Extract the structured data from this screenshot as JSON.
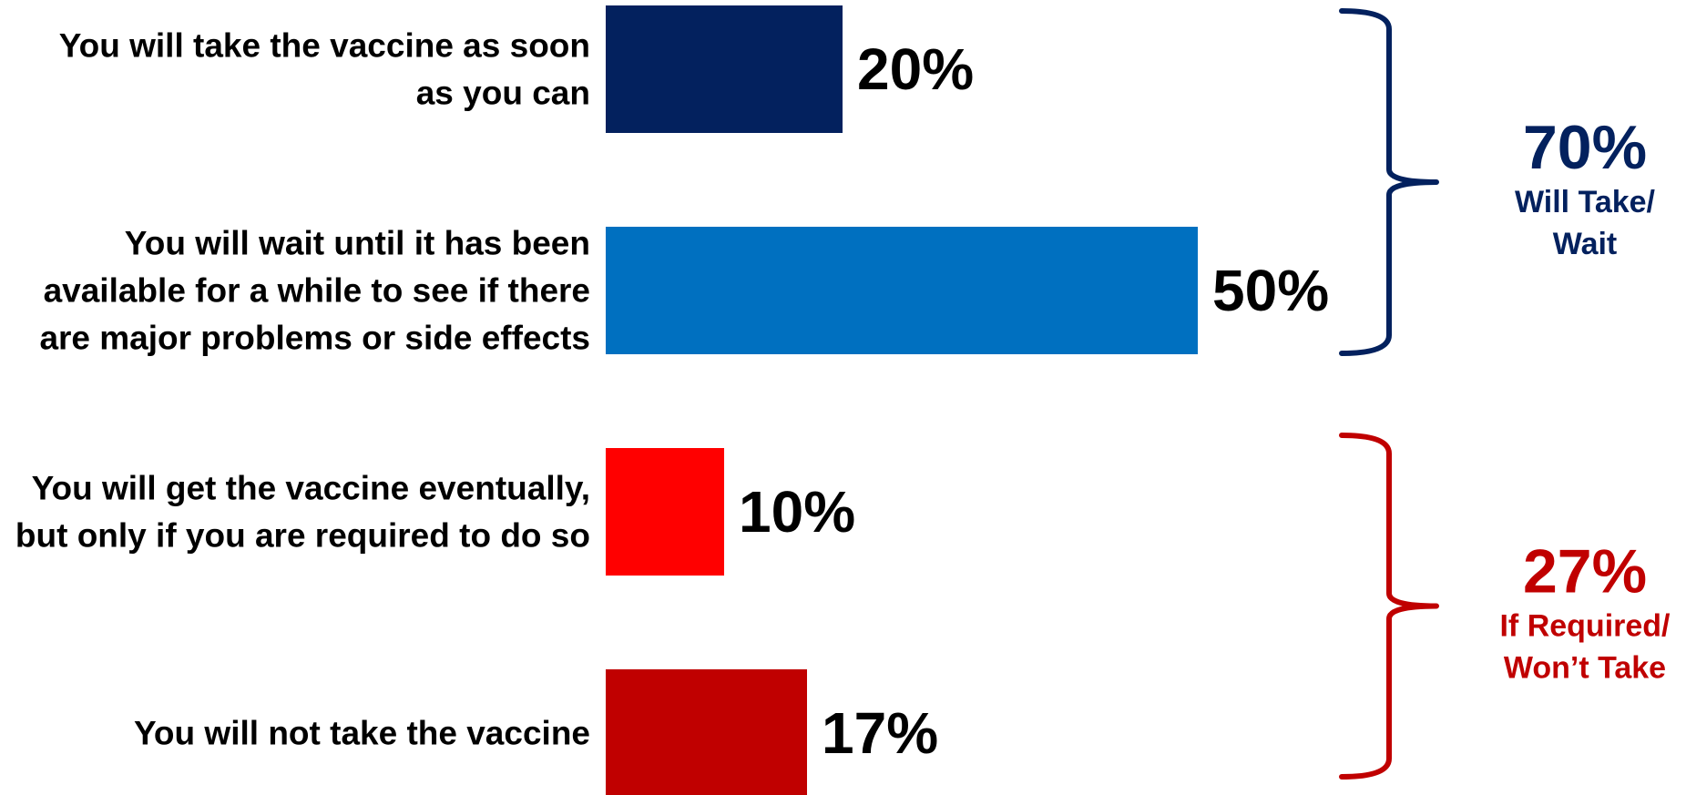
{
  "chart_data": {
    "type": "bar",
    "orientation": "horizontal",
    "categories": [
      [
        "You will take the vaccine as soon",
        "as you can"
      ],
      [
        "You will wait until it has been",
        "available for a while to see if there",
        "are major problems or side effects"
      ],
      [
        "You will get the vaccine eventually,",
        "but only if you are required to do so"
      ],
      [
        "You will not take the vaccine"
      ]
    ],
    "values": [
      20,
      50,
      10,
      17
    ],
    "value_labels": [
      "20%",
      "50%",
      "10%",
      "17%"
    ],
    "bar_colors": [
      "#03215E",
      "#0070C0",
      "#FF0000",
      "#C00000"
    ],
    "xlim": [
      0,
      50
    ],
    "grid": false,
    "legend": "none",
    "groups": [
      {
        "pct": "70%",
        "label_lines": [
          "Will Take/",
          "Wait"
        ],
        "color": "#03215E",
        "bars": [
          0,
          1
        ]
      },
      {
        "pct": "27%",
        "label_lines": [
          "If Required/",
          "Won’t Take"
        ],
        "color": "#C00000",
        "bars": [
          2,
          3
        ]
      }
    ]
  }
}
